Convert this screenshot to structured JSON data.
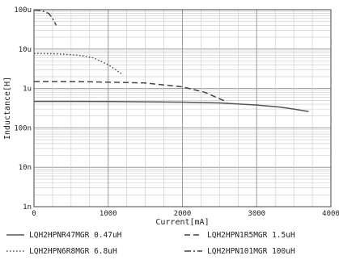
{
  "chart_data": {
    "type": "line",
    "xlabel": "Current[mA]",
    "ylabel": "Inductance[H]",
    "xlim": [
      0,
      4000
    ],
    "ylim": [
      1e-09,
      0.0001
    ],
    "y_scale": "log",
    "grid": true,
    "legend_position": "bottom",
    "x_ticks": [
      {
        "value": 0,
        "label": "0"
      },
      {
        "value": 1000,
        "label": "1000"
      },
      {
        "value": 2000,
        "label": "2000"
      },
      {
        "value": 3000,
        "label": "3000"
      },
      {
        "value": 4000,
        "label": "4000"
      }
    ],
    "y_ticks": [
      {
        "value": 1e-09,
        "label": "1n"
      },
      {
        "value": 1e-08,
        "label": "10n"
      },
      {
        "value": 1e-07,
        "label": "100n"
      },
      {
        "value": 1e-06,
        "label": "1u"
      },
      {
        "value": 1e-05,
        "label": "10u"
      },
      {
        "value": 0.0001,
        "label": "100u"
      }
    ],
    "series": [
      {
        "name": "LQH2HPNR47MGR 0.47uH",
        "line_style": "solid",
        "color": "#555555",
        "points": [
          [
            0,
            4.7e-07
          ],
          [
            500,
            4.7e-07
          ],
          [
            1000,
            4.65e-07
          ],
          [
            1500,
            4.6e-07
          ],
          [
            2000,
            4.5e-07
          ],
          [
            2500,
            4.3e-07
          ],
          [
            3000,
            3.8e-07
          ],
          [
            3300,
            3.4e-07
          ],
          [
            3500,
            3e-07
          ],
          [
            3700,
            2.6e-07
          ]
        ]
      },
      {
        "name": "LQH2HPN1R5MGR 1.5uH",
        "line_style": "dashed",
        "color": "#444444",
        "points": [
          [
            0,
            1.5e-06
          ],
          [
            500,
            1.5e-06
          ],
          [
            1000,
            1.45e-06
          ],
          [
            1500,
            1.38e-06
          ],
          [
            2000,
            1.1e-06
          ],
          [
            2300,
            8e-07
          ],
          [
            2500,
            5.5e-07
          ],
          [
            2600,
            4.5e-07
          ]
        ]
      },
      {
        "name": "LQH2HPN6R8MGR 6.8uH",
        "line_style": "dotted",
        "color": "#555555",
        "points": [
          [
            0,
            7.8e-06
          ],
          [
            300,
            7.6e-06
          ],
          [
            600,
            7e-06
          ],
          [
            800,
            6e-06
          ],
          [
            1000,
            4e-06
          ],
          [
            1100,
            3e-06
          ],
          [
            1200,
            2.2e-06
          ]
        ]
      },
      {
        "name": "LQH2HPN101MGR 100uH",
        "line_style": "dash-dot",
        "color": "#444444",
        "points": [
          [
            0,
            9.8e-05
          ],
          [
            100,
            9.5e-05
          ],
          [
            200,
            8e-05
          ],
          [
            250,
            6e-05
          ],
          [
            300,
            4e-05
          ]
        ]
      }
    ]
  }
}
